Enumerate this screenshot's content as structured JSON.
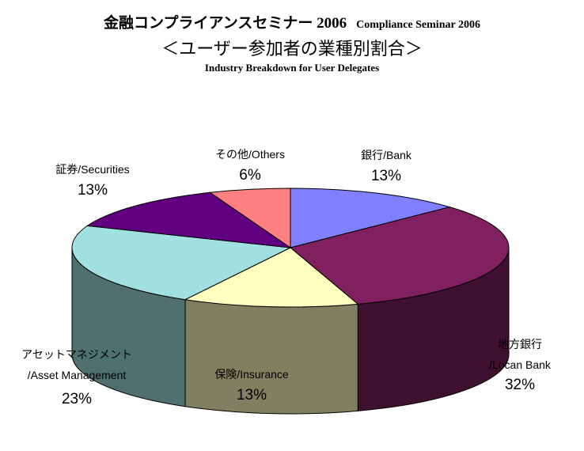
{
  "header": {
    "title_jp": "金融コンプライアンスセミナー 2006",
    "title_en": "Compliance Seminar 2006",
    "subtitle": "＜ユーザー参加者の業種別割合＞",
    "subtitle_en": "Industry Breakdown for User Delegates"
  },
  "chart_data": {
    "type": "pie",
    "title": "金融コンプライアンスセミナー 2006 Compliance Seminar 2006",
    "subtitle": "＜ユーザー参加者の業種別割合＞ Industry Breakdown for User Delegates",
    "three_d": true,
    "slices": [
      {
        "label_line1": "銀行/Bank",
        "label_line2": "",
        "value": 13,
        "value_label": "13%",
        "color": "#8080ff",
        "side_color": "#5a5ab3"
      },
      {
        "label_line1": "地方銀行",
        "label_line2": "/Locan Bank",
        "value": 32,
        "value_label": "32%",
        "color": "#802060",
        "side_color": "#401030"
      },
      {
        "label_line1": "保険/Insurance",
        "label_line2": "",
        "value": 13,
        "value_label": "13%",
        "color": "#ffffc0",
        "side_color": "#808060"
      },
      {
        "label_line1": "アセットマネジメント",
        "label_line2": "/Asset Management",
        "value": 23,
        "value_label": "23%",
        "color": "#a0e0e0",
        "side_color": "#507070"
      },
      {
        "label_line1": "証券/Securities",
        "label_line2": "",
        "value": 13,
        "value_label": "13%",
        "color": "#600080",
        "side_color": "#300040"
      },
      {
        "label_line1": "その他/Others",
        "label_line2": "",
        "value": 6,
        "value_label": "6%",
        "color": "#ff8080",
        "side_color": "#b35a5a"
      }
    ]
  }
}
